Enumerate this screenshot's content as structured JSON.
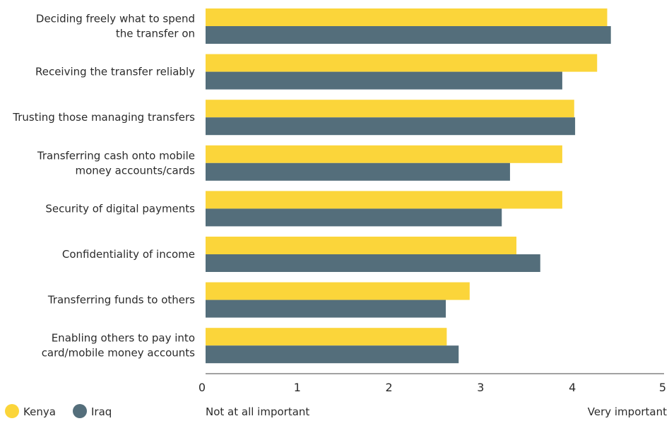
{
  "chart_data": {
    "type": "bar",
    "orientation": "horizontal",
    "categories": [
      [
        "Deciding freely what to spend",
        "the transfer on"
      ],
      [
        "Receiving the transfer reliably"
      ],
      [
        "Trusting those managing transfers"
      ],
      [
        "Transferring cash onto mobile",
        "money accounts/cards"
      ],
      [
        "Security of digital payments"
      ],
      [
        "Confidentiality of income"
      ],
      [
        "Transferring funds to others"
      ],
      [
        "Enabling others to pay into",
        "card/mobile money accounts"
      ]
    ],
    "series": [
      {
        "name": "Kenya",
        "color": "#fbd53a",
        "values": [
          4.38,
          4.27,
          4.02,
          3.89,
          3.89,
          3.39,
          2.88,
          2.63
        ]
      },
      {
        "name": "Iraq",
        "color": "#546e7b",
        "values": [
          4.42,
          3.89,
          4.03,
          3.32,
          3.23,
          3.65,
          2.62,
          2.76
        ]
      }
    ],
    "xlim": [
      0,
      5
    ],
    "xticks": [
      "0",
      "1",
      "2",
      "3",
      "4",
      "5"
    ],
    "xlabel_min": "Not at all important",
    "xlabel_max": "Very important",
    "legend_position": "bottom-left",
    "grid": false
  }
}
